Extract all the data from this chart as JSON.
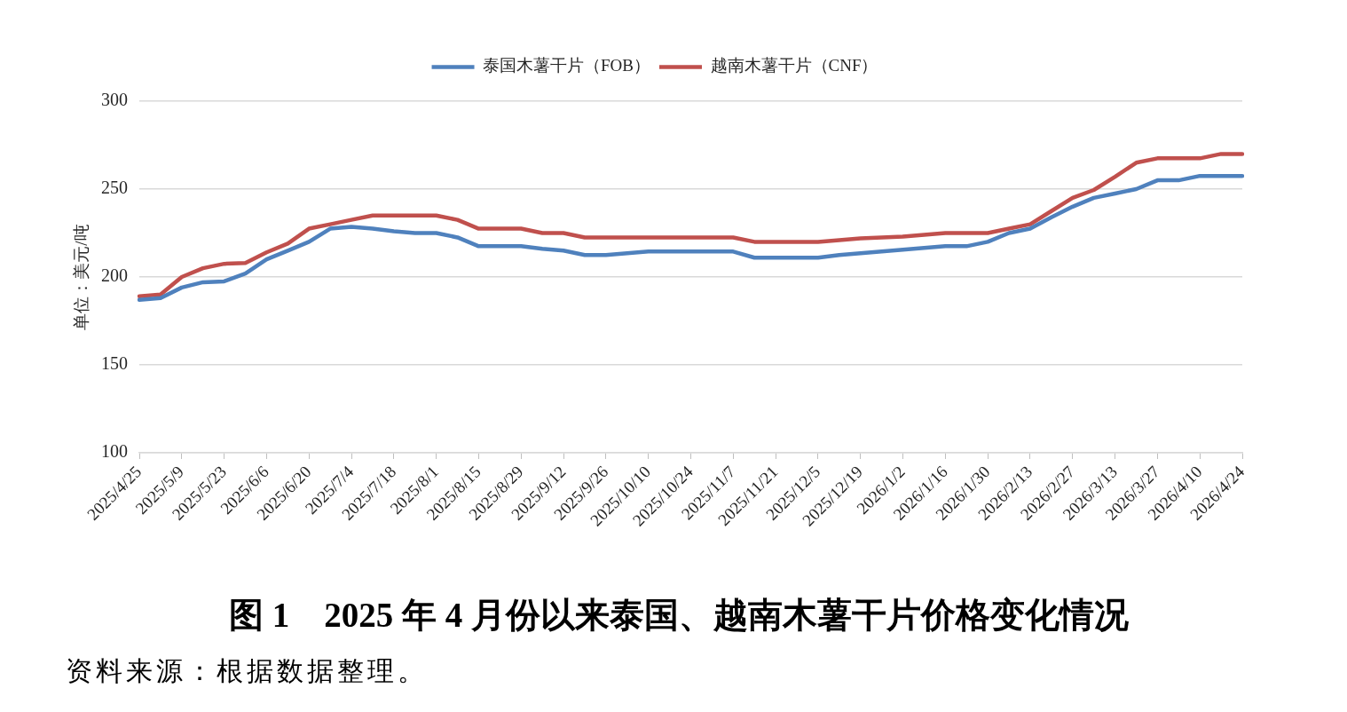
{
  "chart_data": {
    "type": "line",
    "title": "图 1　2025 年 4 月份以来泰国、越南木薯干片价格变化情况",
    "ylabel": "单位：美元/吨",
    "annotations": [
      "资料来源：根据数据整理。"
    ],
    "categories": [
      "2025/4/25",
      null,
      "2025/5/9",
      null,
      "2025/5/23",
      null,
      "2025/6/6",
      null,
      "2025/6/20",
      null,
      "2025/7/4",
      null,
      "2025/7/18",
      null,
      "2025/8/1",
      null,
      "2025/8/15",
      null,
      "2025/8/29",
      null,
      "2025/9/12",
      null,
      "2025/9/26",
      null,
      "2025/10/10",
      null,
      "2025/10/24",
      null,
      "2025/11/7",
      null,
      "2025/11/21",
      null,
      "2025/12/5",
      null,
      "2025/12/19",
      null,
      "2026/1/2",
      null,
      "2026/1/16",
      null,
      "2026/1/30",
      null,
      "2026/2/13",
      null,
      "2026/2/27",
      null,
      "2026/3/13",
      null,
      "2026/3/27",
      null,
      "2026/4/10",
      null,
      "2026/4/24"
    ],
    "series": [
      {
        "name": "泰国木薯干片（FOB）",
        "color": "#4f81bd",
        "values": [
          187,
          188,
          194,
          197,
          197.5,
          202,
          210,
          215,
          220,
          227.5,
          228.5,
          227.5,
          226,
          225,
          225,
          222.5,
          217.5,
          217.5,
          217.5,
          216,
          215,
          212.5,
          212.5,
          213.5,
          214.5,
          214.5,
          214.5,
          214.5,
          214.5,
          211,
          211,
          211,
          211,
          212.5,
          213.5,
          214.5,
          215.5,
          216.5,
          217.5,
          217.5,
          220,
          225,
          227.5,
          234,
          240,
          245,
          247.5,
          250,
          255,
          255,
          257.5,
          257.5,
          257.5
        ]
      },
      {
        "name": "越南木薯干片（CNF）",
        "color": "#c0504d",
        "values": [
          189,
          190,
          200,
          205,
          207.5,
          208,
          214,
          219,
          227.5,
          230,
          232.5,
          235,
          235,
          235,
          235,
          232.5,
          227.5,
          227.5,
          227.5,
          225,
          225,
          222.5,
          222.5,
          222.5,
          222.5,
          222.5,
          222.5,
          222.5,
          222.5,
          220,
          220,
          220,
          220,
          221,
          222,
          222.5,
          223,
          224,
          225,
          225,
          225,
          227.5,
          230,
          237.5,
          245,
          249.5,
          257,
          265,
          267.5,
          267.5,
          267.5,
          270,
          270
        ]
      }
    ],
    "ylim": [
      100,
      300
    ],
    "yticks": [
      100,
      150,
      200,
      250,
      300
    ],
    "grid": "y",
    "legend": "top",
    "marker": "none",
    "line_style": "solid"
  }
}
